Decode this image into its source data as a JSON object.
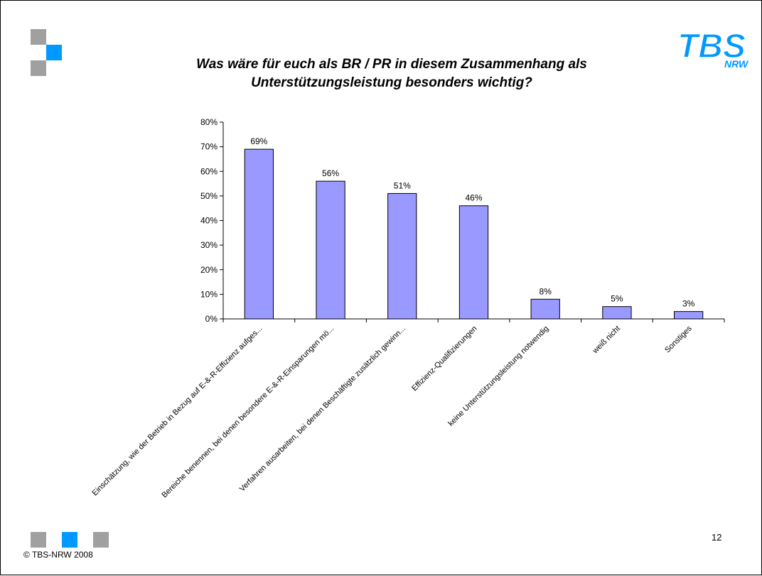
{
  "slide": {
    "title_line1": "Was wäre für euch als BR / PR in diesem Zusammenhang als",
    "title_line2": "Unterstützungsleistung besonders wichtig?",
    "logo_text": "TBS",
    "logo_subtext": "NRW",
    "page_number": "12",
    "copyright": "© TBS-NRW 2008"
  },
  "colors": {
    "bar_fill": "#9999ff",
    "bar_stroke": "#000000",
    "accent_blue": "#0099ff",
    "deco_gray": "#a0a0a0",
    "logo_blue": "#0099ff"
  },
  "chart_data": {
    "type": "bar",
    "title": "Was wäre für euch als BR / PR in diesem Zusammenhang als Unterstützungsleistung besonders wichtig?",
    "xlabel": "",
    "ylabel": "",
    "categories": [
      "Einschätzung, wie der Betrieb in Bezug auf E-&-R-Effizienz aufges...",
      "Bereiche benennen, bei denen besondere E-&-R-Einsparungen mö...",
      "Verfahren ausarbeiten, bei denen Beschäftigte zusätzlich gewinn...",
      "Effizienz-Qualifizierungen",
      "keine Unterstützungsleistung notwendig",
      "weiß nicht",
      "Sonstiges"
    ],
    "values": [
      69,
      56,
      51,
      46,
      8,
      5,
      3
    ],
    "data_labels": [
      "69%",
      "56%",
      "51%",
      "46%",
      "8%",
      "5%",
      "3%"
    ],
    "yticks": [
      0,
      10,
      20,
      30,
      40,
      50,
      60,
      70,
      80
    ],
    "ytick_labels": [
      "0%",
      "10%",
      "20%",
      "30%",
      "40%",
      "50%",
      "60%",
      "70%",
      "80%"
    ],
    "ylim": [
      0,
      80
    ],
    "grid": false,
    "legend": "none"
  }
}
